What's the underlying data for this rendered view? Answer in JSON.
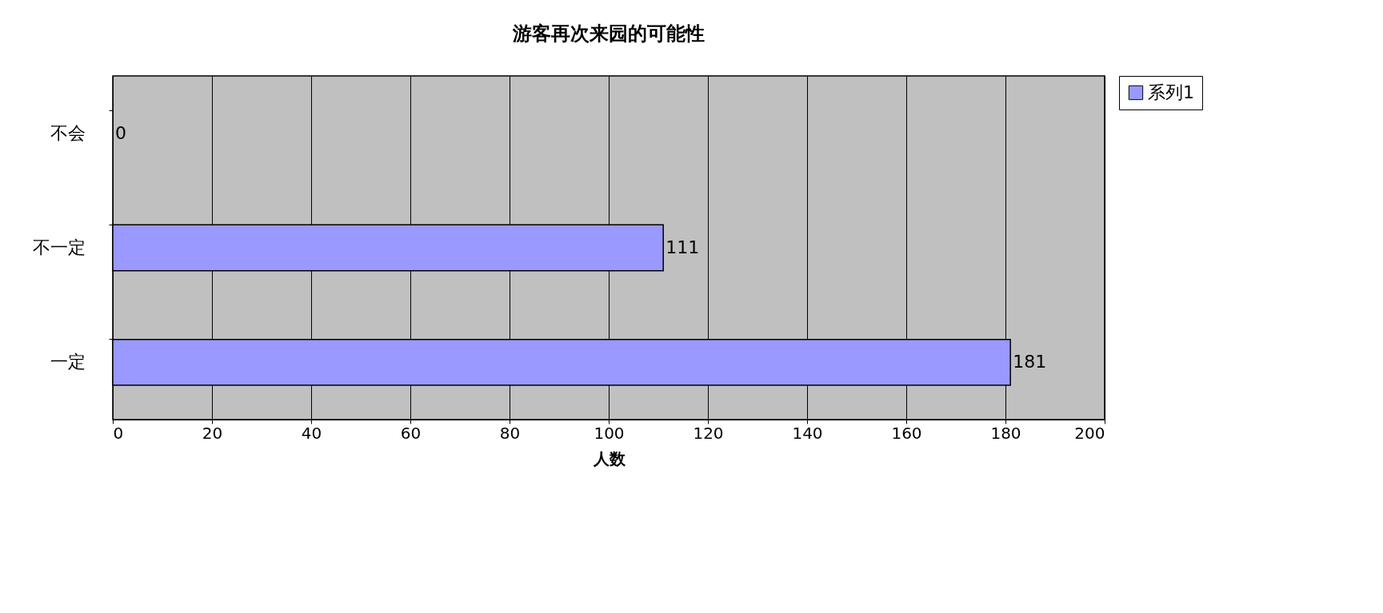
{
  "chart_data": {
    "type": "bar",
    "orientation": "horizontal",
    "title": "游客再次来园的可能性",
    "xlabel": "人数",
    "categories": [
      "不会",
      "不一定",
      "一定"
    ],
    "series": [
      {
        "name": "系列1",
        "color": "#9999ff",
        "values": [
          0,
          111,
          181
        ]
      }
    ],
    "xlim": [
      0,
      200
    ],
    "xticks": [
      0,
      20,
      40,
      60,
      80,
      100,
      120,
      140,
      160,
      180,
      200
    ],
    "grid": "x",
    "legend": "top right",
    "data_labels": true
  }
}
